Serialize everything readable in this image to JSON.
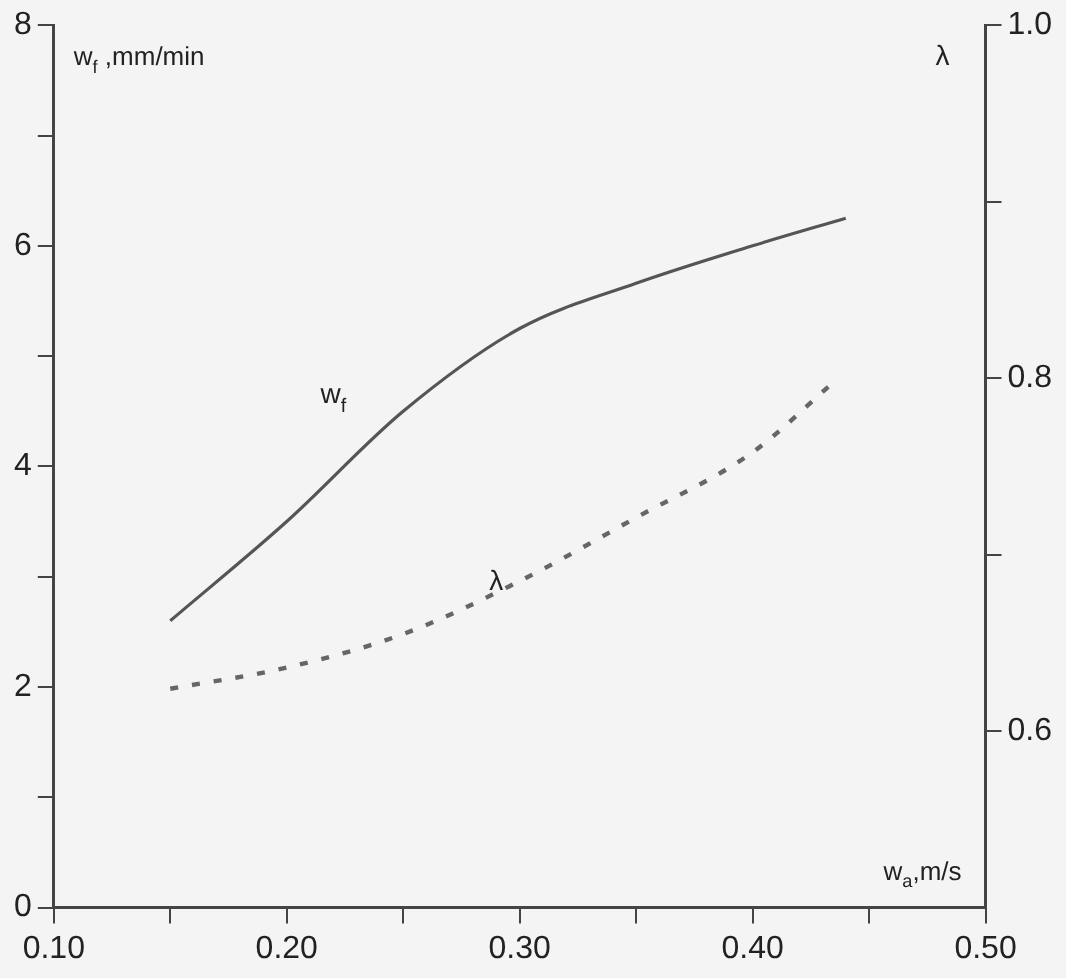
{
  "chart_data": {
    "type": "line",
    "xlabel": "w$_{a}$,m/s",
    "ylabel": "w$_{f}$ ,mm/min",
    "y2label": "λ",
    "x": [
      0.15,
      0.2,
      0.25,
      0.3,
      0.35,
      0.4,
      0.44
    ],
    "series": [
      {
        "name": "w$_{f}$",
        "color": "#555555",
        "line_style": "solid",
        "values": [
          2.6,
          3.5,
          4.5,
          5.25,
          5.66,
          6.0,
          6.25
        ]
      },
      {
        "name": "λ",
        "color": "#666666",
        "line_style": "dashed",
        "axis": "y2",
        "x": [
          0.15,
          0.2,
          0.25,
          0.3,
          0.35,
          0.4,
          0.435
        ],
        "values": [
          0.624,
          0.636,
          0.655,
          0.685,
          0.721,
          0.758,
          0.798
        ]
      }
    ],
    "xlim": [
      0.1,
      0.5
    ],
    "xticks": [
      {
        "value": 0.1,
        "label": "0.10"
      },
      {
        "value": 0.15,
        "label": null
      },
      {
        "value": 0.2,
        "label": "0.20"
      },
      {
        "value": 0.25,
        "label": null
      },
      {
        "value": 0.3,
        "label": "0.30"
      },
      {
        "value": 0.35,
        "label": null
      },
      {
        "value": 0.4,
        "label": "0.40"
      },
      {
        "value": 0.45,
        "label": null
      },
      {
        "value": 0.5,
        "label": "0.50"
      }
    ],
    "ylim": [
      0,
      8
    ],
    "yticks": [
      0,
      {
        "value": 1,
        "label": null
      },
      2,
      {
        "value": 3,
        "label": null
      },
      4,
      {
        "value": 5,
        "label": null
      },
      6,
      {
        "value": 7,
        "label": null
      },
      8
    ],
    "y2lim": [
      0.5,
      1.0
    ],
    "y2ticks": [
      0.6,
      {
        "value": 0.7,
        "label": null
      },
      0.8,
      {
        "value": 0.9,
        "label": null
      },
      {
        "value": 1.0,
        "label": "1.0"
      }
    ],
    "grid": false,
    "legend": false,
    "marker": "none"
  }
}
